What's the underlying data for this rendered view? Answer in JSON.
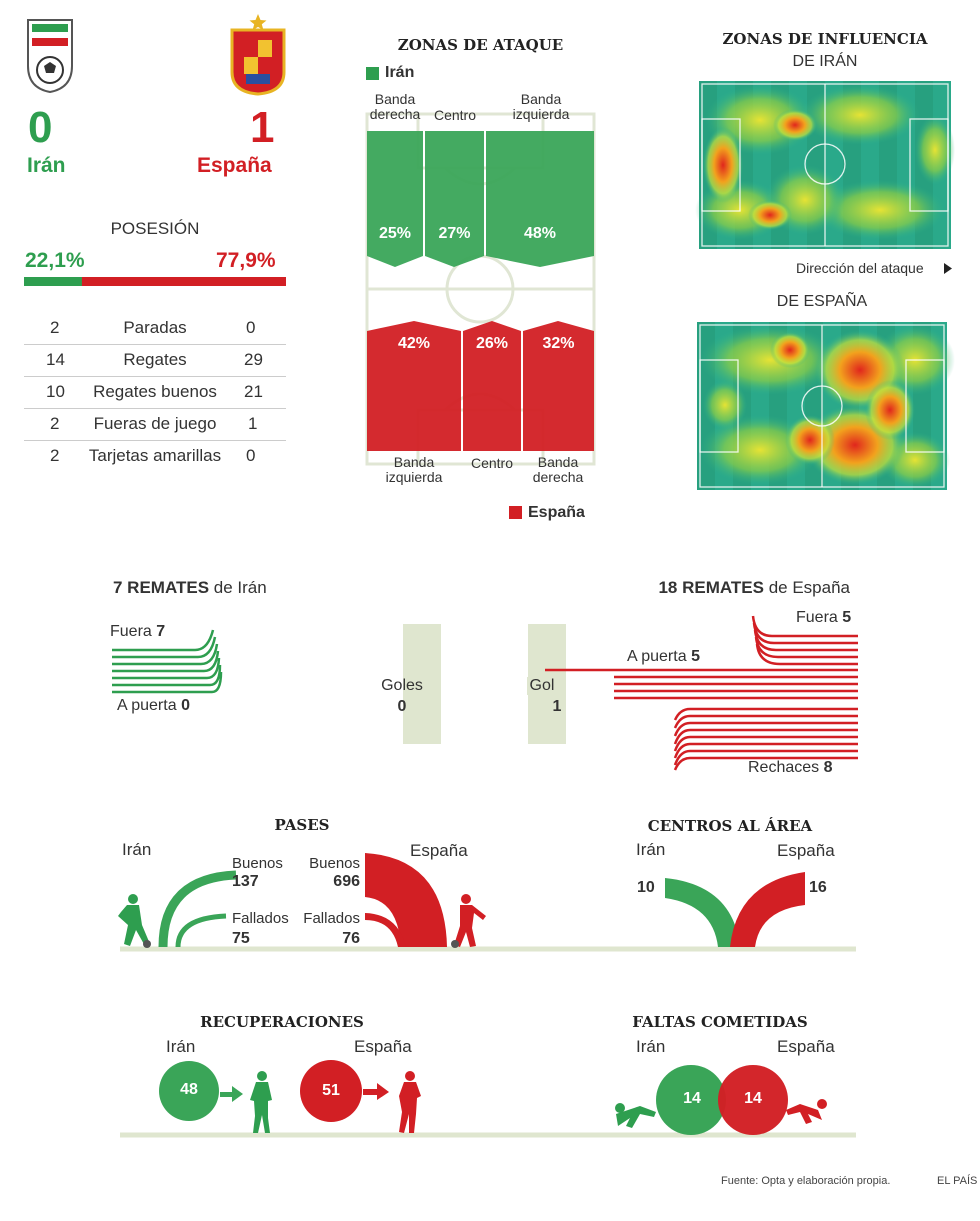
{
  "score": {
    "home": {
      "name": "Irán",
      "goals": "0",
      "color": "#2e9e4f"
    },
    "away": {
      "name": "España",
      "goals": "1",
      "color": "#d21f24"
    }
  },
  "possession": {
    "title": "POSESIÓN",
    "home": "22,1%",
    "away": "77,9%",
    "home_value": 22.1
  },
  "stats": [
    {
      "home": "2",
      "label": "Paradas",
      "away": "0"
    },
    {
      "home": "14",
      "label": "Regates",
      "away": "29"
    },
    {
      "home": "10",
      "label": "Regates buenos",
      "away": "21"
    },
    {
      "home": "2",
      "label": "Fueras de juego",
      "away": "1"
    },
    {
      "home": "2",
      "label": "Tarjetas amarillas",
      "away": "0"
    }
  ],
  "attack_zones": {
    "title": "ZONAS DE ATAQUE",
    "iran_legend": "Irán",
    "spain_legend": "España",
    "iran_labels": {
      "l1": "Banda",
      "l2": "derecha",
      "c": "Centro",
      "r1": "Banda",
      "r2": "izquierda"
    },
    "spain_labels": {
      "l1": "Banda",
      "l2": "izquierda",
      "c": "Centro",
      "r1": "Banda",
      "r2": "derecha"
    },
    "iran_values": [
      "25%",
      "27%",
      "48%"
    ],
    "spain_values": [
      "42%",
      "26%",
      "32%"
    ]
  },
  "influence": {
    "title": "ZONAS DE INFLUENCIA",
    "iran_sub": "DE IRÁN",
    "direction": "Dirección del ataque",
    "spain_sub": "DE ESPAÑA"
  },
  "shots": {
    "iran_title_num": "7 REMATES",
    "iran_title_rest": "de Irán",
    "spain_title_num": "18 REMATES",
    "spain_title_rest": "de España",
    "iran_out_label": "Fuera",
    "iran_out": "7",
    "iran_on_label": "A puerta",
    "iran_on": "0",
    "goals_label": "Goles",
    "goals_value": "0",
    "gol_label": "Gol",
    "gol_value": "1",
    "spain_out_label": "Fuera",
    "spain_out": "5",
    "spain_on_label": "A puerta",
    "spain_on": "5",
    "spain_blocked_label": "Rechaces",
    "spain_blocked": "8"
  },
  "passes": {
    "title": "PASES",
    "iran": "Irán",
    "spain": "España",
    "good_label": "Buenos",
    "bad_label": "Fallados",
    "iran_good": "137",
    "iran_bad": "75",
    "spain_good": "696",
    "spain_bad": "76"
  },
  "crosses": {
    "title": "CENTROS AL ÁREA",
    "iran": "Irán",
    "spain": "España",
    "iran_value": "10",
    "spain_value": "16"
  },
  "recoveries": {
    "title": "RECUPERACIONES",
    "iran": "Irán",
    "spain": "España",
    "iran_value": "48",
    "spain_value": "51"
  },
  "fouls": {
    "title": "FALTAS COMETIDAS",
    "iran": "Irán",
    "spain": "España",
    "iran_value": "14",
    "spain_value": "14"
  },
  "footer": {
    "source": "Fuente: Opta y elaboración propia.",
    "brand": "EL PAÍS"
  }
}
